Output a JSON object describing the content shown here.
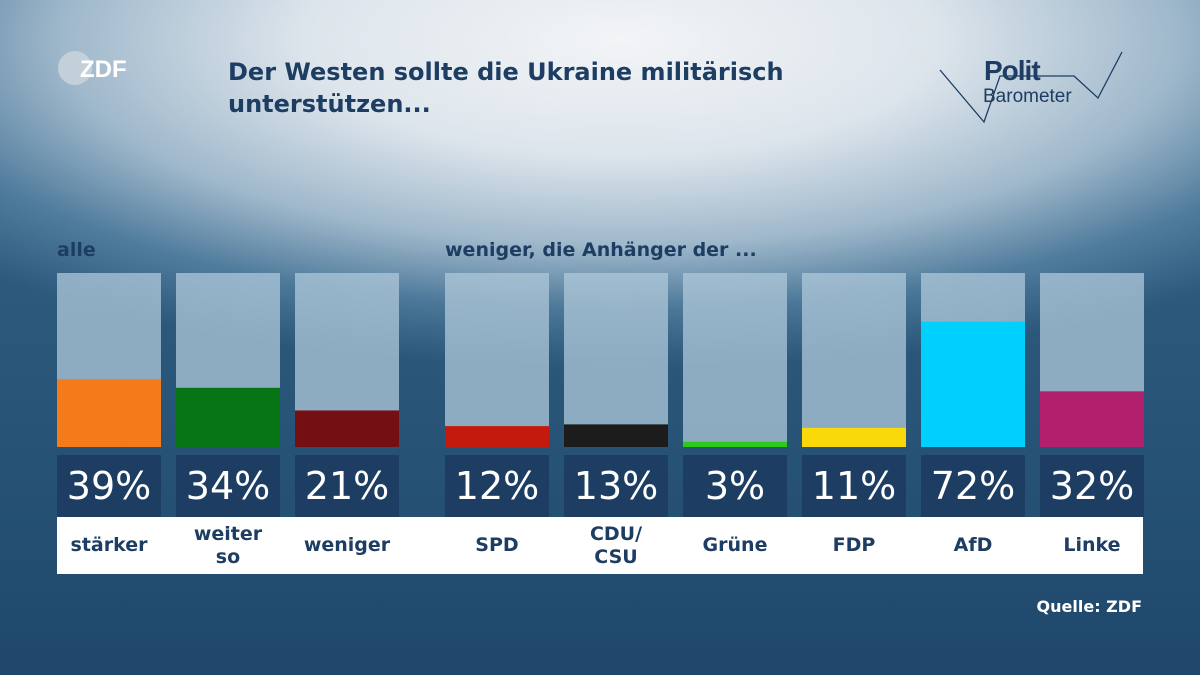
{
  "title": "Der Westen sollte die Ukraine militärisch unterstützen...",
  "logo_left": "ZDF",
  "logo_right": {
    "line1": "Polit",
    "line2": "Barometer"
  },
  "source": "Quelle: ZDF",
  "groups": [
    {
      "label": "alle"
    },
    {
      "label": "weniger, die Anhänger der ..."
    }
  ],
  "chart_data": {
    "type": "bar",
    "title": "Der Westen sollte die Ukraine militärisch unterstützen...",
    "ylim": [
      0,
      100
    ],
    "grid": false,
    "categories": [
      "stärker",
      "weiter so",
      "weniger",
      "SPD",
      "CDU/ CSU",
      "Grüne",
      "FDP",
      "AfD",
      "Linke"
    ],
    "values": [
      39,
      34,
      21,
      12,
      13,
      3,
      11,
      72,
      32
    ],
    "value_labels": [
      "39%",
      "34%",
      "21%",
      "12%",
      "13%",
      "3%",
      "11%",
      "72%",
      "32%"
    ],
    "colors": [
      "#f57b1a",
      "#077515",
      "#740f13",
      "#c31a0d",
      "#1c1c1c",
      "#2ccb19",
      "#f9d90a",
      "#00d0fc",
      "#b2206d"
    ],
    "label_lines": [
      [
        "stärker"
      ],
      [
        "weiter",
        "so"
      ],
      [
        "weniger"
      ],
      [
        "SPD"
      ],
      [
        "CDU/",
        "CSU"
      ],
      [
        "Grüne"
      ],
      [
        "FDP"
      ],
      [
        "AfD"
      ],
      [
        "Linke"
      ]
    ]
  }
}
